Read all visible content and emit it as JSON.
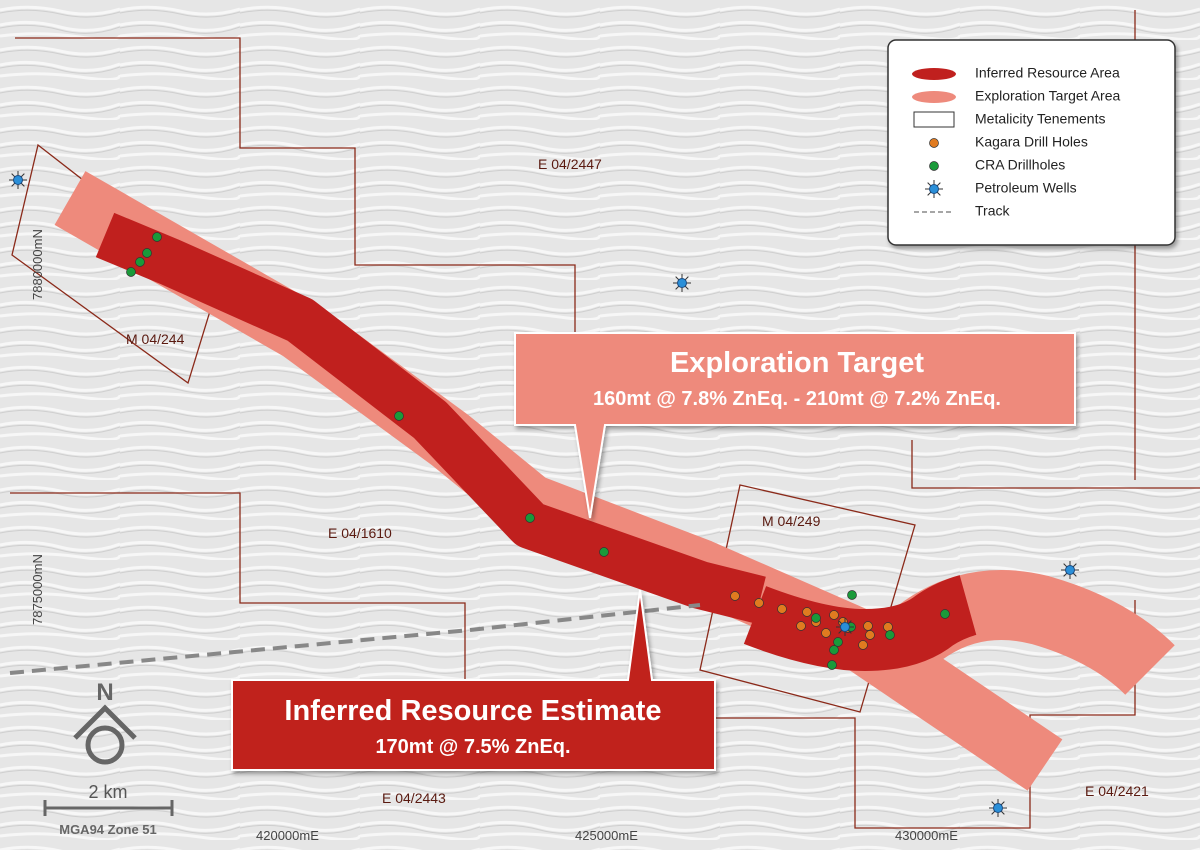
{
  "legend": [
    "Inferred Resource Area",
    "Exploration Target Area",
    "Metalicity Tenements",
    "Kagara Drill Holes",
    "CRA Drillholes",
    "Petroleum Wells",
    "Track"
  ],
  "tenements": [
    "E 04/2447",
    "M 04/244",
    "E 04/1610",
    "M 04/249",
    "E 04/2443",
    "E 04/2421"
  ],
  "northings": [
    "7880000mN",
    "7875000mN"
  ],
  "eastings": [
    "420000mE",
    "425000mE",
    "430000mE"
  ],
  "exploration_callout": {
    "title": "Exploration Target",
    "detail": "160mt @ 7.8% ZnEq. - 210mt @ 7.2% ZnEq."
  },
  "inferred_callout": {
    "title": "Inferred Resource Estimate",
    "detail": "170mt @ 7.5% ZnEq."
  },
  "north": "N",
  "scale": "2 km",
  "projection": "MGA94 Zone 51"
}
